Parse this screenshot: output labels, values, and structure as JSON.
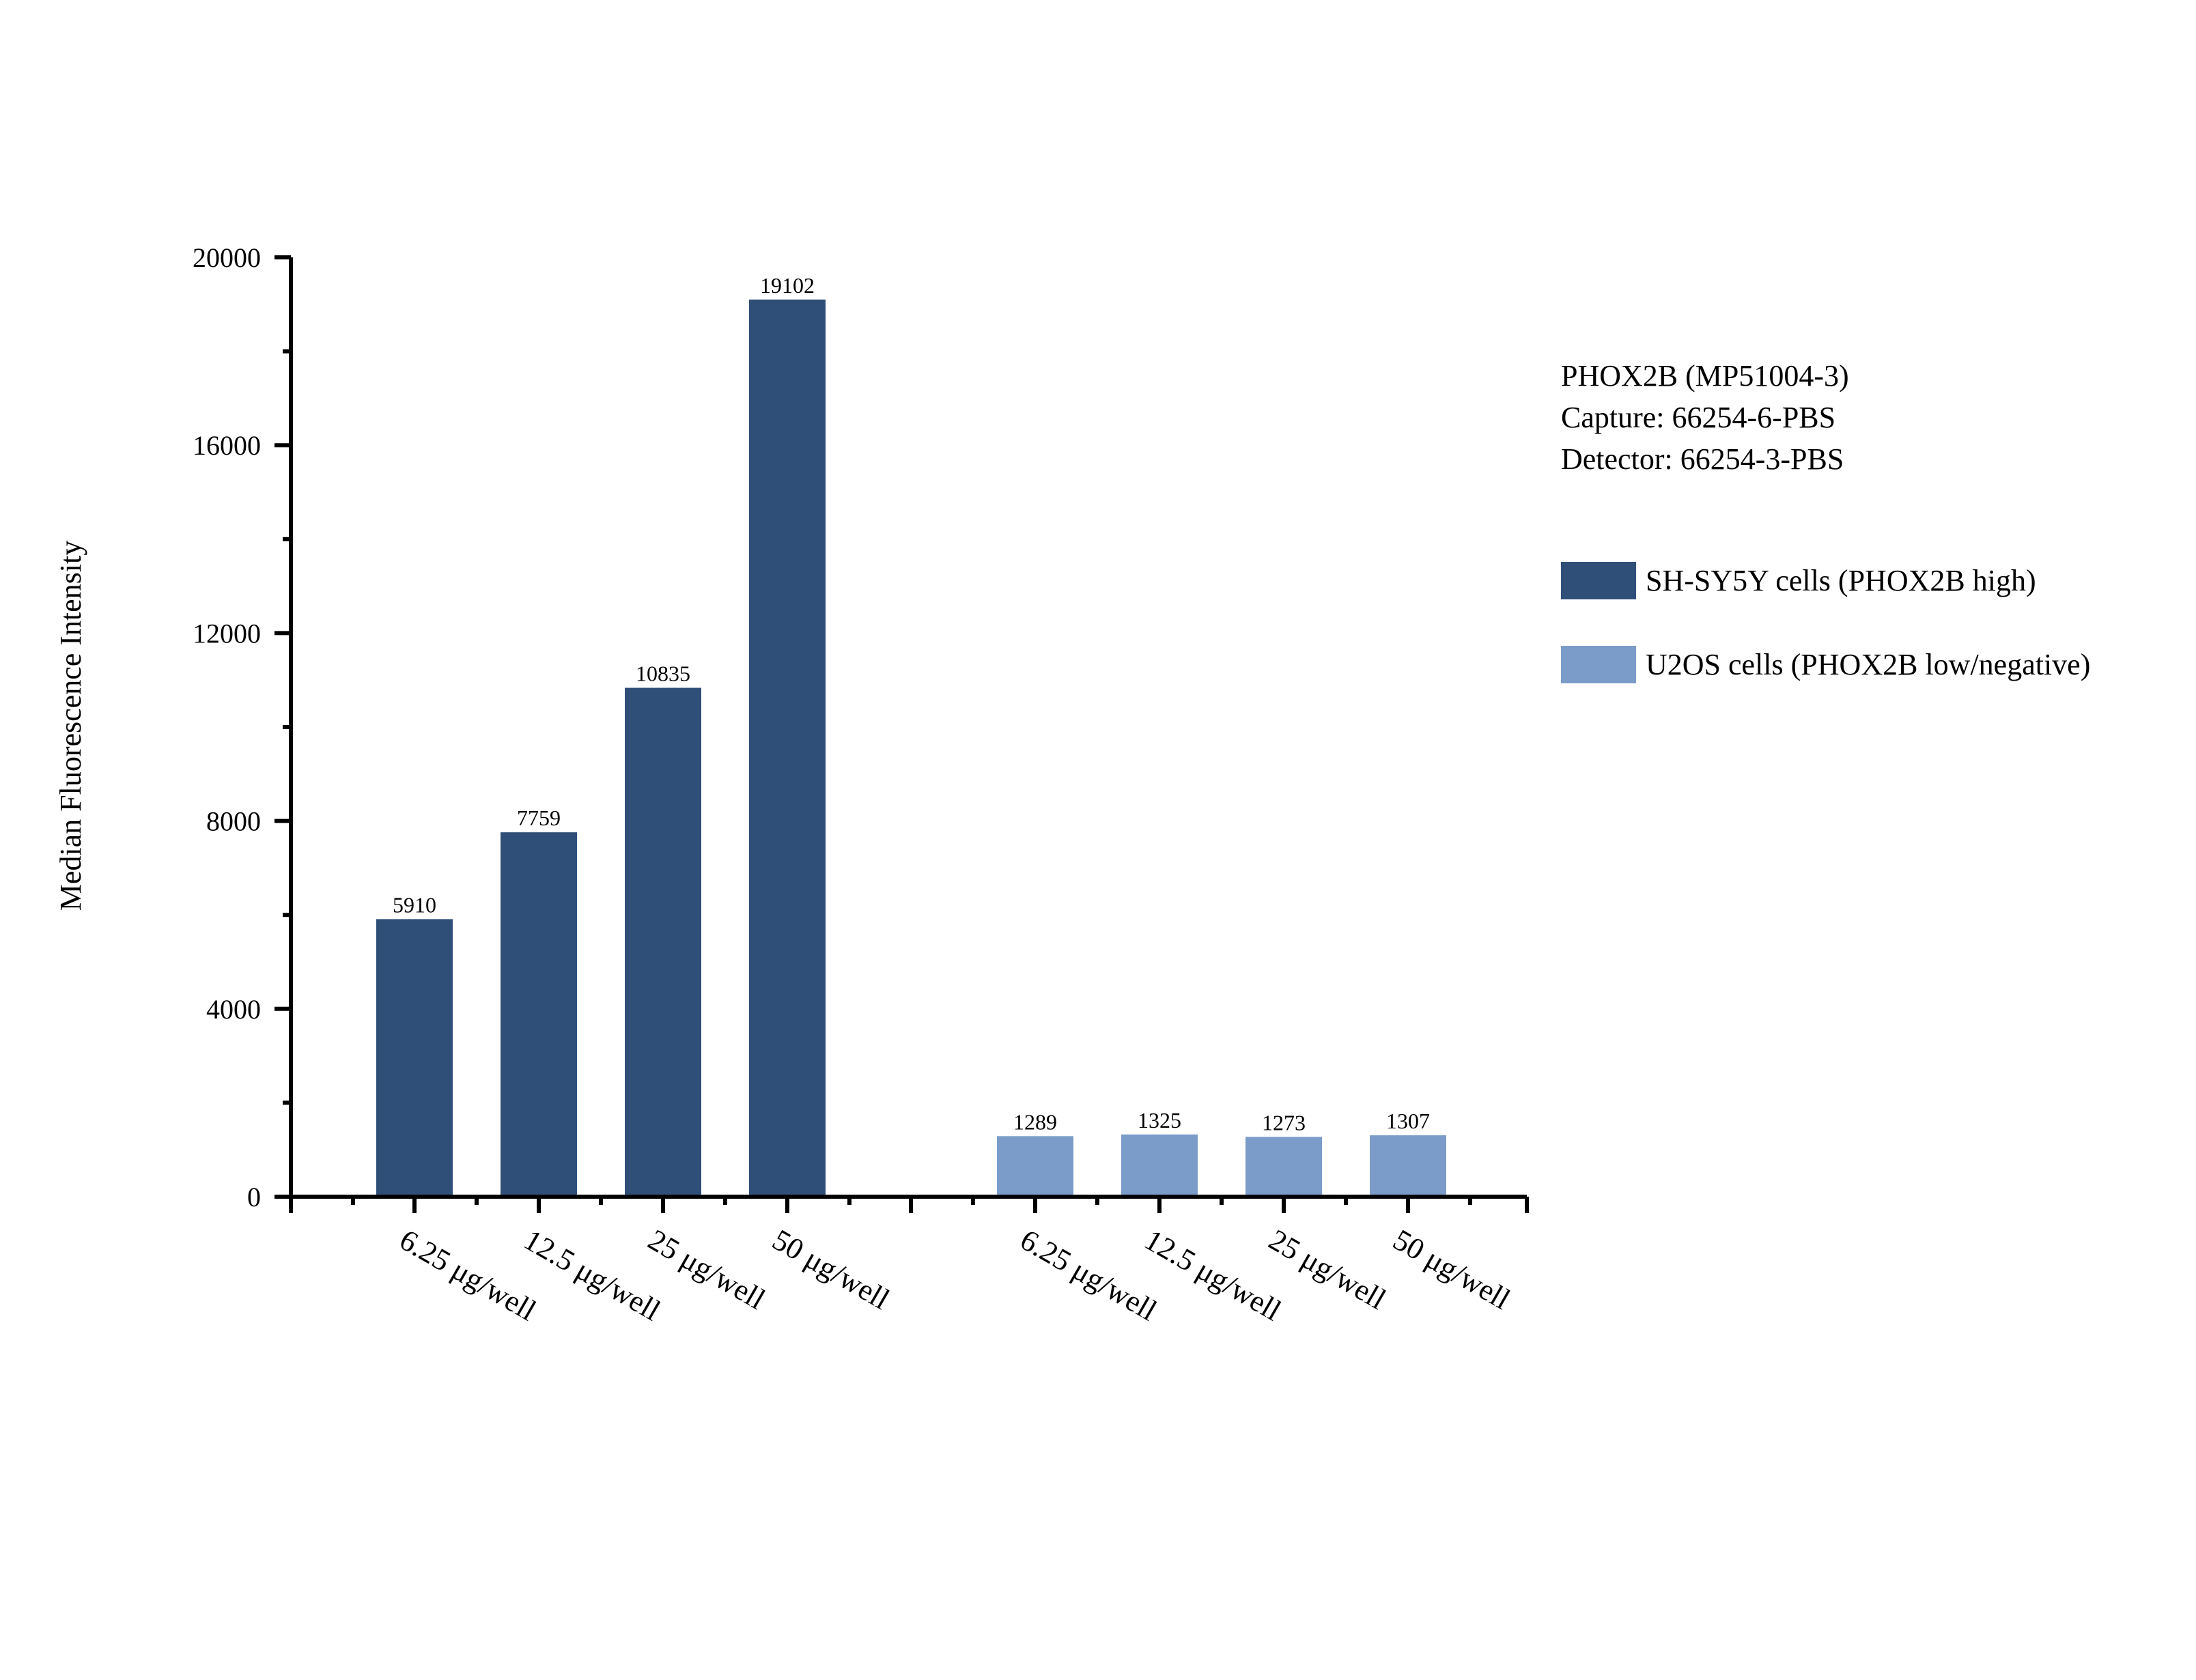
{
  "chart_data": {
    "type": "bar",
    "title": "",
    "ylabel": "Median Fluorescence Intensity",
    "xlabel": "",
    "ylim": [
      0,
      20000
    ],
    "yticks": [
      0,
      4000,
      8000,
      12000,
      16000,
      20000
    ],
    "grid": false,
    "legend_position": "right",
    "annotations": [
      "PHOX2B (MP51004-3)",
      "Capture: 66254-6-PBS",
      "Detector: 66254-3-PBS"
    ],
    "groups": [
      {
        "name": "SH-SY5Y cells (PHOX2B high)",
        "color": "#2F4F78",
        "categories": [
          "6.25 μg/well",
          "12.5 μg/well",
          "25 μg/well",
          "50 μg/well"
        ],
        "values": [
          5910,
          7759,
          10835,
          19102
        ]
      },
      {
        "name": "U2OS cells (PHOX2B low/negative)",
        "color": "#7B9CC9",
        "categories": [
          "6.25 μg/well",
          "12.5 μg/well",
          "25 μg/well",
          "50 μg/well"
        ],
        "values": [
          1289,
          1325,
          1273,
          1307
        ]
      }
    ]
  },
  "info": {
    "line1": "PHOX2B (MP51004-3)",
    "line2": "Capture: 66254-6-PBS",
    "line3": "Detector: 66254-3-PBS"
  },
  "legend": [
    {
      "label": "SH-SY5Y cells (PHOX2B high)",
      "color": "#2F4F78"
    },
    {
      "label": "U2OS cells (PHOX2B low/negative)",
      "color": "#7B9CC9"
    }
  ]
}
